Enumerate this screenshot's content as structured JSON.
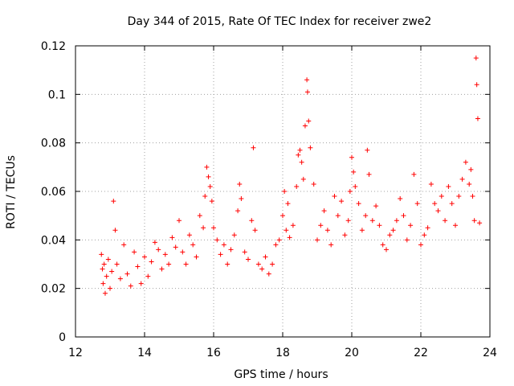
{
  "chart_data": {
    "type": "scatter",
    "title": "Day 344 of 2015, Rate Of TEC Index for receiver zwe2",
    "xlabel": "GPS time / hours",
    "ylabel": "ROTI / TECUs",
    "xlim": [
      12,
      24
    ],
    "ylim": [
      0,
      0.12
    ],
    "x_ticks": [
      12,
      14,
      16,
      18,
      20,
      22,
      24
    ],
    "x_tick_labels": [
      "12",
      "14",
      "16",
      "18",
      "20",
      "22",
      "24"
    ],
    "y_ticks": [
      0,
      0.02,
      0.04,
      0.06,
      0.08,
      0.1,
      0.12
    ],
    "y_tick_labels": [
      "0",
      "0.02",
      "0.04",
      "0.06",
      "0.08",
      "0.1",
      "0.12"
    ],
    "grid": true,
    "marker": "+",
    "color": "#ff0000",
    "series": [
      {
        "name": "ROTI",
        "x": [
          12.75,
          12.78,
          12.8,
          12.83,
          12.86,
          12.9,
          12.95,
          13.0,
          13.05,
          13.1,
          13.15,
          13.2,
          13.3,
          13.4,
          13.5,
          13.6,
          13.7,
          13.8,
          13.9,
          14.0,
          14.1,
          14.2,
          14.3,
          14.4,
          14.5,
          14.6,
          14.7,
          14.8,
          14.9,
          15.0,
          15.1,
          15.2,
          15.3,
          15.4,
          15.5,
          15.6,
          15.7,
          15.75,
          15.8,
          15.85,
          15.9,
          15.95,
          16.0,
          16.1,
          16.2,
          16.3,
          16.4,
          16.5,
          16.6,
          16.7,
          16.75,
          16.8,
          16.9,
          17.0,
          17.1,
          17.15,
          17.2,
          17.3,
          17.4,
          17.5,
          17.6,
          17.7,
          17.8,
          17.9,
          18.0,
          18.05,
          18.1,
          18.15,
          18.2,
          18.3,
          18.4,
          18.45,
          18.5,
          18.55,
          18.6,
          18.65,
          18.7,
          18.72,
          18.75,
          18.8,
          18.9,
          19.0,
          19.1,
          19.2,
          19.3,
          19.4,
          19.5,
          19.6,
          19.7,
          19.8,
          19.9,
          19.95,
          20.0,
          20.05,
          20.1,
          20.2,
          20.3,
          20.4,
          20.45,
          20.5,
          20.6,
          20.7,
          20.8,
          20.9,
          21.0,
          21.1,
          21.2,
          21.3,
          21.4,
          21.5,
          21.6,
          21.7,
          21.8,
          21.9,
          22.0,
          22.1,
          22.2,
          22.3,
          22.4,
          22.5,
          22.6,
          22.7,
          22.8,
          22.9,
          23.0,
          23.1,
          23.2,
          23.3,
          23.4,
          23.45,
          23.5,
          23.55,
          23.6,
          23.62,
          23.65,
          23.7
        ],
        "y": [
          0.034,
          0.028,
          0.022,
          0.03,
          0.018,
          0.025,
          0.032,
          0.02,
          0.027,
          0.056,
          0.044,
          0.03,
          0.024,
          0.038,
          0.026,
          0.021,
          0.035,
          0.029,
          0.022,
          0.033,
          0.025,
          0.031,
          0.039,
          0.036,
          0.028,
          0.034,
          0.03,
          0.041,
          0.037,
          0.048,
          0.035,
          0.03,
          0.042,
          0.038,
          0.033,
          0.05,
          0.045,
          0.058,
          0.07,
          0.066,
          0.062,
          0.056,
          0.045,
          0.04,
          0.034,
          0.038,
          0.03,
          0.036,
          0.042,
          0.052,
          0.063,
          0.057,
          0.035,
          0.032,
          0.048,
          0.078,
          0.044,
          0.03,
          0.028,
          0.033,
          0.026,
          0.03,
          0.038,
          0.04,
          0.05,
          0.06,
          0.044,
          0.055,
          0.041,
          0.046,
          0.062,
          0.075,
          0.077,
          0.072,
          0.065,
          0.087,
          0.106,
          0.101,
          0.089,
          0.078,
          0.063,
          0.04,
          0.046,
          0.052,
          0.044,
          0.038,
          0.058,
          0.05,
          0.056,
          0.042,
          0.048,
          0.06,
          0.074,
          0.068,
          0.062,
          0.055,
          0.044,
          0.05,
          0.077,
          0.067,
          0.048,
          0.054,
          0.046,
          0.038,
          0.036,
          0.042,
          0.044,
          0.048,
          0.057,
          0.05,
          0.04,
          0.046,
          0.067,
          0.055,
          0.038,
          0.042,
          0.045,
          0.063,
          0.055,
          0.052,
          0.058,
          0.048,
          0.062,
          0.055,
          0.046,
          0.058,
          0.065,
          0.072,
          0.063,
          0.069,
          0.058,
          0.048,
          0.115,
          0.104,
          0.09,
          0.047
        ]
      }
    ]
  }
}
